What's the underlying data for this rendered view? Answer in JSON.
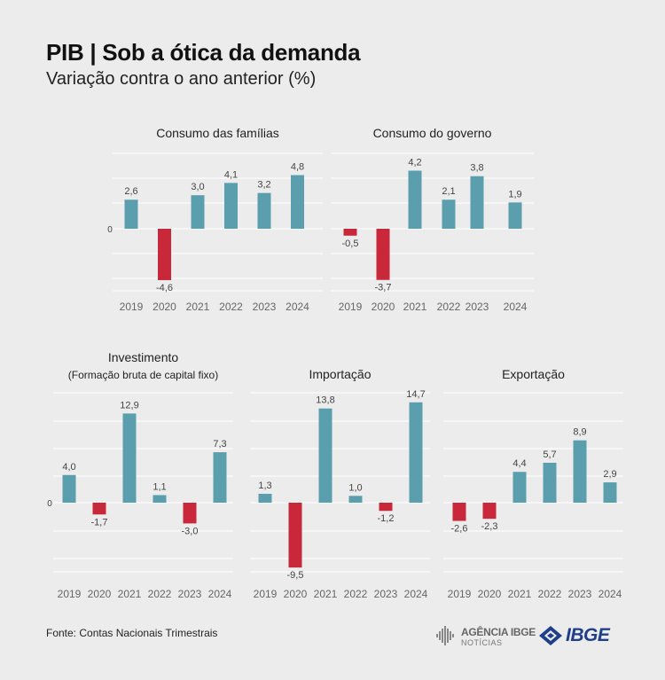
{
  "title": "PIB | Sob a ótica da demanda",
  "subtitle": "Variação contra o ano anterior (%)",
  "source": "Fonte: Contas Nacionais Trimestrais",
  "logos": {
    "agencia_line1": "AGÊNCIA IBGE",
    "agencia_line2": "NOTÍCIAS",
    "ibge": "IBGE"
  },
  "colors": {
    "positive": "#5b9fae",
    "negative": "#c8283a",
    "grid": "#ffffff",
    "background": "#ececec"
  },
  "chart_data": [
    {
      "type": "bar",
      "title": "Consumo das famílias",
      "categories": [
        "2019",
        "2020",
        "2021",
        "2022",
        "2023",
        "2024"
      ],
      "values": [
        2.6,
        -4.6,
        3.0,
        4.1,
        3.2,
        4.8
      ],
      "labels": [
        "2,6",
        "-4,6",
        "3,0",
        "4,1",
        "3,2",
        "4,8"
      ],
      "zero_label": "0",
      "grid": true
    },
    {
      "type": "bar",
      "title": "Consumo do governo",
      "categories": [
        "2019",
        "2020",
        "2021",
        "2022",
        "2023",
        "2024"
      ],
      "values": [
        -0.5,
        -3.7,
        4.2,
        2.1,
        3.8,
        1.9
      ],
      "labels": [
        "-0,5",
        "-3,7",
        "4,2",
        "2,1",
        "3,8",
        "1,9"
      ],
      "grid": true
    },
    {
      "type": "bar",
      "title": "Investimento",
      "subtitle": "(Formação bruta de capital fixo)",
      "categories": [
        "2019",
        "2020",
        "2021",
        "2022",
        "2023",
        "2024"
      ],
      "values": [
        4.0,
        -1.7,
        12.9,
        1.1,
        -3.0,
        7.3
      ],
      "labels": [
        "4,0",
        "-1,7",
        "12,9",
        "1,1",
        "-3,0",
        "7,3"
      ],
      "zero_label": "0",
      "grid": true
    },
    {
      "type": "bar",
      "title": "Importação",
      "categories": [
        "2019",
        "2020",
        "2021",
        "2022",
        "2023",
        "2024"
      ],
      "values": [
        1.3,
        -9.5,
        13.8,
        1.0,
        -1.2,
        14.7
      ],
      "labels": [
        "1,3",
        "-9,5",
        "13,8",
        "1,0",
        "-1,2",
        "14,7"
      ],
      "grid": true
    },
    {
      "type": "bar",
      "title": "Exportação",
      "categories": [
        "2019",
        "2020",
        "2021",
        "2022",
        "2023",
        "2024"
      ],
      "values": [
        -2.6,
        -2.3,
        4.4,
        5.7,
        8.9,
        2.9
      ],
      "labels": [
        "-2,6",
        "-2,3",
        "4,4",
        "5,7",
        "8,9",
        "2,9"
      ],
      "grid": true
    }
  ]
}
